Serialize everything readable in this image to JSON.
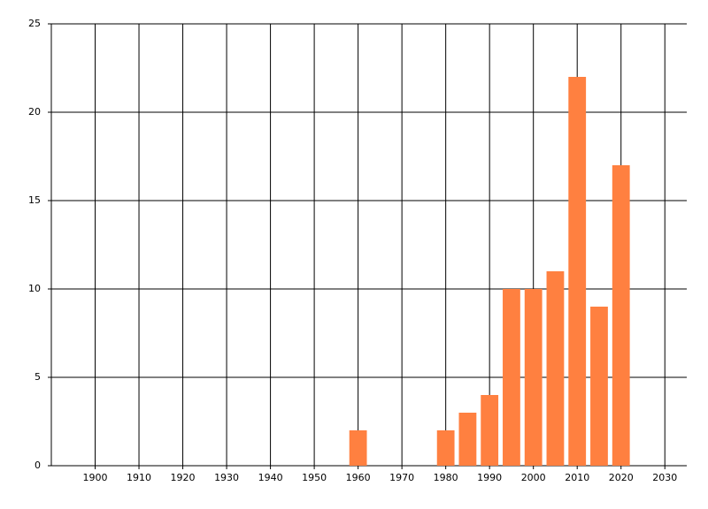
{
  "chart_data": {
    "type": "bar",
    "x": [
      1960,
      1980,
      1985,
      1990,
      1995,
      2000,
      2005,
      2010,
      2015,
      2020
    ],
    "values": [
      2,
      2,
      3,
      4,
      10,
      10,
      11,
      22,
      9,
      17
    ],
    "color": "#ff8040",
    "xlim": [
      1890,
      2035
    ],
    "xticks": [
      1900,
      1910,
      1920,
      1930,
      1940,
      1950,
      1960,
      1970,
      1980,
      1990,
      2000,
      2010,
      2020,
      2030
    ],
    "ylim": [
      0,
      25
    ],
    "yticks": [
      0,
      5,
      10,
      15,
      20,
      25
    ],
    "grid": true
  }
}
